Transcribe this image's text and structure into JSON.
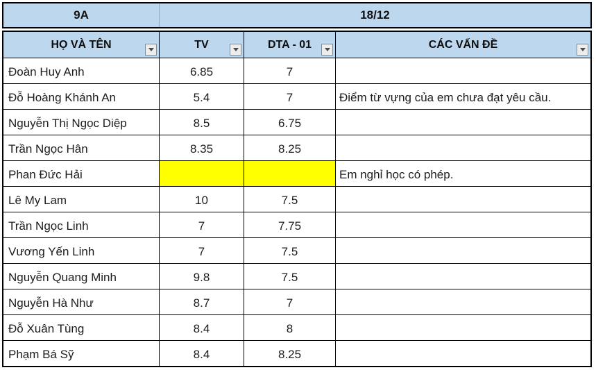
{
  "colors": {
    "header_bg": "#BDD7EE",
    "highlight": "#FFFF00",
    "border": "#000000",
    "top_divider": "#93A9BE",
    "text": "#1c1c1c"
  },
  "icons": {
    "filter_dropdown": "triangle-down"
  },
  "top_header": {
    "class_label": "9A",
    "date_label": "18/12"
  },
  "table": {
    "columns": [
      {
        "label": "HỌ VÀ TÊN"
      },
      {
        "label": "TV"
      },
      {
        "label": "DTA - 01"
      },
      {
        "label": "CÁC VẤN ĐỀ"
      }
    ],
    "rows": [
      {
        "name": "Đoàn Huy Anh",
        "tv": "6.85",
        "dta": "7",
        "issues": "",
        "highlight": false
      },
      {
        "name": "Đỗ Hoàng Khánh An",
        "tv": "5.4",
        "dta": "7",
        "issues": "Điểm từ vựng của em chưa đạt yêu cầu.",
        "highlight": false
      },
      {
        "name": "Nguyễn Thị Ngọc Diệp",
        "tv": "8.5",
        "dta": "6.75",
        "issues": "",
        "highlight": false
      },
      {
        "name": "Trần Ngọc Hân",
        "tv": "8.35",
        "dta": "8.25",
        "issues": "",
        "highlight": false
      },
      {
        "name": "Phan Đức Hải",
        "tv": "",
        "dta": "",
        "issues": "Em nghỉ học có phép.",
        "highlight": true
      },
      {
        "name": "Lê My Lam",
        "tv": "10",
        "dta": "7.5",
        "issues": "",
        "highlight": false
      },
      {
        "name": "Trần Ngọc Linh",
        "tv": "7",
        "dta": "7.75",
        "issues": "",
        "highlight": false
      },
      {
        "name": "Vương Yến Linh",
        "tv": "7",
        "dta": "7.5",
        "issues": "",
        "highlight": false
      },
      {
        "name": "Nguyễn Quang Minh",
        "tv": "9.8",
        "dta": "7.5",
        "issues": "",
        "highlight": false
      },
      {
        "name": "Nguyễn Hà Như",
        "tv": "8.7",
        "dta": "7",
        "issues": "",
        "highlight": false
      },
      {
        "name": "Đỗ Xuân Tùng",
        "tv": "8.4",
        "dta": "8",
        "issues": "",
        "highlight": false
      },
      {
        "name": "Phạm Bá Sỹ",
        "tv": "8.4",
        "dta": "8.25",
        "issues": "",
        "highlight": false
      }
    ]
  }
}
